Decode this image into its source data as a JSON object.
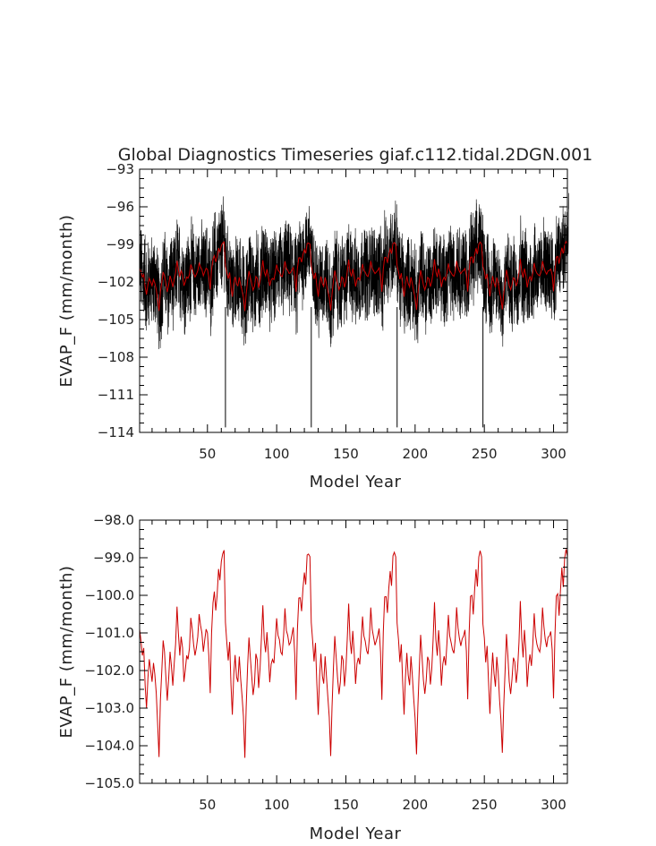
{
  "chart_data": [
    {
      "type": "line",
      "title": "Global Diagnostics Timeseries giaf.c112.tidal.2DGN.001",
      "xlabel": "Model Year",
      "ylabel": "EVAP_F (mm/month)",
      "xlim": [
        1,
        310
      ],
      "ylim": [
        -114,
        -93
      ],
      "xticks": [
        50,
        100,
        150,
        200,
        250,
        300
      ],
      "xtick_labels": [
        "50",
        "100",
        "150",
        "200",
        "250",
        "300"
      ],
      "yticks": [
        -93,
        -96,
        -99,
        -102,
        -105,
        -108,
        -111,
        -114
      ],
      "ytick_labels": [
        "-93",
        "-96",
        "-99",
        "-102",
        "-105",
        "-108",
        "-111",
        "-114"
      ],
      "series": [
        {
          "name": "monthly",
          "color": "#000000",
          "samples_per_year": 12,
          "envelope_note": "dense monthly noise, roughly -108 to -96 with sharp dips at cycle ends",
          "spike_minima": [
            {
              "x": 63,
              "y": -113.6
            },
            {
              "x": 125,
              "y": -113.6
            },
            {
              "x": 187,
              "y": -113.6
            },
            {
              "x": 249,
              "y": -113.6
            }
          ]
        },
        {
          "name": "annual mean",
          "color": "#cc0000",
          "x": [
            1,
            2,
            3,
            4,
            5,
            6,
            7,
            8,
            9,
            10,
            11,
            12,
            13,
            14,
            15,
            16,
            17,
            18,
            19,
            20,
            21,
            22,
            23,
            24,
            25,
            26,
            27,
            28,
            29,
            30,
            31,
            32,
            33,
            34,
            35,
            36,
            37,
            38,
            39,
            40,
            41,
            42,
            43,
            44,
            45,
            46,
            47,
            48,
            49,
            50,
            51,
            52,
            53,
            54,
            55,
            56,
            57,
            58,
            59,
            60,
            61,
            62,
            63
          ],
          "y": [
            -100.9,
            -101.2,
            -101.6,
            -101.4,
            -102.4,
            -103.0,
            -102.2,
            -101.7,
            -102.0,
            -102.3,
            -101.8,
            -102.1,
            -102.6,
            -103.4,
            -104.3,
            -102.8,
            -102.0,
            -101.2,
            -101.5,
            -102.2,
            -102.8,
            -102.2,
            -101.5,
            -101.9,
            -102.4,
            -101.8,
            -101.3,
            -100.3,
            -101.0,
            -101.6,
            -101.1,
            -101.4,
            -102.3,
            -102.0,
            -101.6,
            -101.7,
            -101.4,
            -100.6,
            -100.9,
            -101.3,
            -101.6,
            -101.4,
            -101.1,
            -100.5,
            -100.8,
            -101.0,
            -101.5,
            -101.2,
            -100.9,
            -101.0,
            -101.6,
            -102.6,
            -101.0,
            -100.2,
            -99.9,
            -100.4,
            -100.0,
            -99.3,
            -99.6,
            -99.1,
            -98.9,
            -98.8,
            -104.1
          ],
          "cycle_years": 62,
          "cycles": 5
        }
      ]
    },
    {
      "type": "line",
      "title": "",
      "xlabel": "Model Year",
      "ylabel": "EVAP_F (mm/month)",
      "xlim": [
        1,
        310
      ],
      "ylim": [
        -105,
        -98
      ],
      "xticks": [
        50,
        100,
        150,
        200,
        250,
        300
      ],
      "xtick_labels": [
        "50",
        "100",
        "150",
        "200",
        "250",
        "300"
      ],
      "yticks": [
        -98,
        -99,
        -100,
        -101,
        -102,
        -103,
        -104,
        -105
      ],
      "ytick_labels": [
        "-98.0",
        "-99.0",
        "-100.0",
        "-101.0",
        "-102.0",
        "-103.0",
        "-104.0",
        "-105.0"
      ],
      "series": [
        {
          "name": "annual mean",
          "color": "#cc0000",
          "x": [
            1,
            2,
            3,
            4,
            5,
            6,
            7,
            8,
            9,
            10,
            11,
            12,
            13,
            14,
            15,
            16,
            17,
            18,
            19,
            20,
            21,
            22,
            23,
            24,
            25,
            26,
            27,
            28,
            29,
            30,
            31,
            32,
            33,
            34,
            35,
            36,
            37,
            38,
            39,
            40,
            41,
            42,
            43,
            44,
            45,
            46,
            47,
            48,
            49,
            50,
            51,
            52,
            53,
            54,
            55,
            56,
            57,
            58,
            59,
            60,
            61,
            62,
            63
          ],
          "y": [
            -100.9,
            -101.2,
            -101.6,
            -101.4,
            -102.4,
            -103.0,
            -102.2,
            -101.7,
            -102.0,
            -102.3,
            -101.8,
            -102.1,
            -102.6,
            -103.4,
            -104.3,
            -102.8,
            -102.0,
            -101.2,
            -101.5,
            -102.2,
            -102.8,
            -102.2,
            -101.5,
            -101.9,
            -102.4,
            -101.8,
            -101.3,
            -100.3,
            -101.0,
            -101.6,
            -101.1,
            -101.4,
            -102.3,
            -102.0,
            -101.6,
            -101.7,
            -101.4,
            -100.6,
            -100.9,
            -101.3,
            -101.6,
            -101.4,
            -101.1,
            -100.5,
            -100.8,
            -101.0,
            -101.5,
            -101.2,
            -100.9,
            -101.0,
            -101.6,
            -102.6,
            -101.0,
            -100.2,
            -99.9,
            -100.4,
            -100.0,
            -99.3,
            -99.6,
            -99.1,
            -98.9,
            -98.8,
            -104.1
          ],
          "cycle_years": 62,
          "cycles": 5
        }
      ]
    }
  ]
}
